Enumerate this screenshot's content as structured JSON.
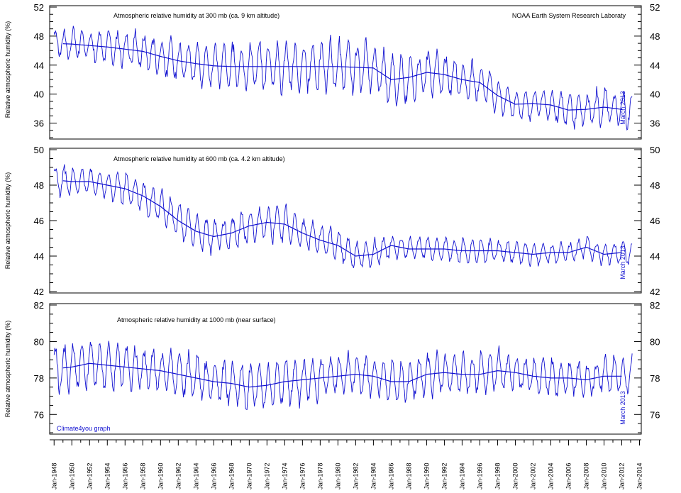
{
  "chart_data": [
    {
      "type": "line",
      "title": "Atmospheric relative humidity at 300 mb (ca. 9 km altitude)",
      "source_label": "NOAA Earth System Research Laboraty",
      "ylabel": "Relative atmospheric humidity (%)",
      "right_label": "March 2013",
      "ylim": [
        34,
        52
      ],
      "yticks": [
        36,
        40,
        44,
        48,
        52
      ],
      "series": [
        {
          "values_kind": "monthly",
          "color": "#1010d0"
        },
        {
          "values_kind": "smoothed",
          "color": "#1010d0"
        }
      ],
      "x": [
        1948,
        1950,
        1952,
        1954,
        1956,
        1958,
        1960,
        1962,
        1964,
        1966,
        1968,
        1970,
        1972,
        1974,
        1976,
        1978,
        1980,
        1982,
        1984,
        1986,
        1988,
        1990,
        1992,
        1994,
        1996,
        1998,
        2000,
        2002,
        2004,
        2006,
        2008,
        2010,
        2012
      ],
      "smoothed": [
        47.0,
        46.9,
        46.7,
        46.5,
        46.2,
        45.9,
        45.2,
        44.6,
        44.2,
        43.9,
        43.8,
        43.8,
        43.8,
        43.8,
        43.8,
        43.8,
        43.8,
        43.7,
        43.6,
        42.0,
        42.3,
        43.0,
        42.7,
        42.0,
        41.6,
        39.8,
        38.6,
        38.7,
        38.5,
        37.8,
        37.9,
        38.2,
        37.9
      ],
      "amplitude": [
        1.8,
        1.9,
        2.0,
        2.1,
        2.2,
        2.3,
        2.4,
        2.5,
        2.6,
        2.6,
        2.7,
        2.8,
        2.9,
        3.0,
        3.0,
        3.1,
        3.2,
        3.1,
        3.0,
        3.2,
        3.0,
        2.8,
        2.6,
        2.4,
        2.4,
        2.2,
        2.0,
        2.0,
        2.0,
        2.1,
        2.2,
        2.3,
        2.4
      ]
    },
    {
      "type": "line",
      "title": "Atmospheric relative humidity at 600 mb (ca. 4.2 km altitude)",
      "ylabel": "Relative atmospheric humidity (%)",
      "right_label": "March 2013",
      "ylim": [
        42,
        50
      ],
      "yticks": [
        42,
        44,
        46,
        48,
        50
      ],
      "series": [
        {
          "values_kind": "monthly",
          "color": "#1010d0"
        },
        {
          "values_kind": "smoothed",
          "color": "#1010d0"
        }
      ],
      "x": [
        1948,
        1950,
        1952,
        1954,
        1956,
        1958,
        1960,
        1962,
        1964,
        1966,
        1968,
        1970,
        1972,
        1974,
        1976,
        1978,
        1980,
        1982,
        1984,
        1986,
        1988,
        1990,
        1992,
        1994,
        1996,
        1998,
        2000,
        2002,
        2004,
        2006,
        2008,
        2010,
        2012
      ],
      "smoothed": [
        48.3,
        48.2,
        48.2,
        48.0,
        47.8,
        47.4,
        46.8,
        46.0,
        45.4,
        45.1,
        45.3,
        45.7,
        45.9,
        45.8,
        45.3,
        44.9,
        44.6,
        44.0,
        44.1,
        44.6,
        44.4,
        44.4,
        44.4,
        44.3,
        44.3,
        44.3,
        44.2,
        44.1,
        44.2,
        44.2,
        44.5,
        44.1,
        44.2
      ],
      "amplitude": [
        0.8,
        0.8,
        0.7,
        0.7,
        0.8,
        0.8,
        0.9,
        0.9,
        0.9,
        0.9,
        0.8,
        0.8,
        0.9,
        0.9,
        0.8,
        0.8,
        0.8,
        0.8,
        0.7,
        0.6,
        0.6,
        0.6,
        0.6,
        0.6,
        0.6,
        0.6,
        0.6,
        0.6,
        0.5,
        0.5,
        0.5,
        0.6,
        0.6
      ]
    },
    {
      "type": "line",
      "title": "Atmospheric relative humidity at 1000 mb (near surface)",
      "ylabel": "Relative atmospheric humidity (%)",
      "right_label": "March 2013",
      "credit": "Climate4you graph",
      "ylim": [
        75,
        82
      ],
      "yticks": [
        76,
        78,
        80,
        82
      ],
      "series": [
        {
          "values_kind": "monthly",
          "color": "#1010d0"
        },
        {
          "values_kind": "smoothed",
          "color": "#1010d0"
        }
      ],
      "x": [
        1948,
        1950,
        1952,
        1954,
        1956,
        1958,
        1960,
        1962,
        1964,
        1966,
        1968,
        1970,
        1972,
        1974,
        1976,
        1978,
        1980,
        1982,
        1984,
        1986,
        1988,
        1990,
        1992,
        1994,
        1996,
        1998,
        2000,
        2002,
        2004,
        2006,
        2008,
        2010,
        2012
      ],
      "smoothed": [
        78.5,
        78.6,
        78.8,
        78.7,
        78.6,
        78.5,
        78.4,
        78.2,
        78.0,
        77.8,
        77.7,
        77.5,
        77.6,
        77.8,
        77.9,
        78.0,
        78.1,
        78.2,
        78.1,
        77.8,
        77.8,
        78.2,
        78.3,
        78.2,
        78.2,
        78.4,
        78.3,
        78.1,
        78.0,
        78.0,
        77.9,
        78.1,
        78.1
      ],
      "amplitude": [
        1.2,
        1.2,
        1.2,
        1.2,
        1.1,
        1.1,
        1.1,
        1.1,
        1.1,
        1.1,
        1.1,
        1.1,
        1.1,
        1.1,
        1.1,
        1.1,
        1.0,
        1.0,
        1.0,
        1.0,
        1.0,
        1.0,
        1.0,
        1.0,
        1.0,
        1.0,
        0.9,
        0.9,
        0.9,
        0.9,
        0.9,
        0.9,
        0.9
      ]
    }
  ],
  "x_axis": {
    "tick_labels": [
      "Jan-1948",
      "Jan-1950",
      "Jan-1952",
      "Jan-1954",
      "Jan-1956",
      "Jan-1958",
      "Jan-1960",
      "Jan-1962",
      "Jan-1964",
      "Jan-1966",
      "Jan-1968",
      "Jan-1970",
      "Jan-1972",
      "Jan-1974",
      "Jan-1976",
      "Jan-1978",
      "Jan-1980",
      "Jan-1982",
      "Jan-1984",
      "Jan-1986",
      "Jan-1988",
      "Jan-1990",
      "Jan-1992",
      "Jan-1994",
      "Jan-1996",
      "Jan-1998",
      "Jan-2000",
      "Jan-2002",
      "Jan-2004",
      "Jan-2006",
      "Jan-2008",
      "Jan-2010",
      "Jan-2012",
      "Jan-2014"
    ],
    "range": [
      1947.5,
      2014.2
    ]
  }
}
